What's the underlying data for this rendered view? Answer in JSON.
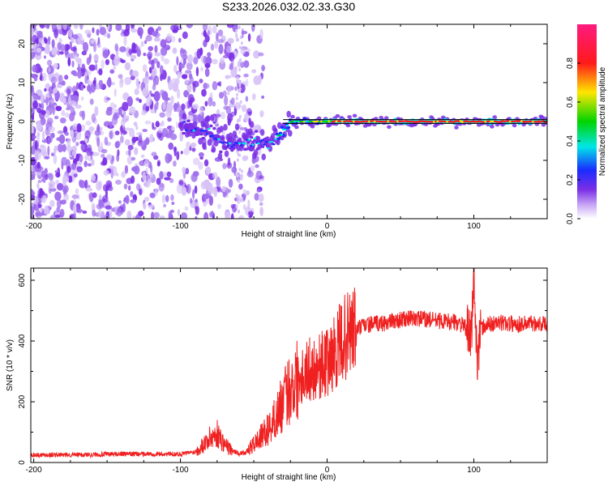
{
  "title": "S233.2026.032.02.33.G30",
  "chart_data": [
    {
      "type": "heatmap",
      "xlabel": "Height of straight line (km)",
      "ylabel": "Frequency (Hz)",
      "xlim": [
        -202,
        150
      ],
      "ylim": [
        -25,
        25
      ],
      "xticks": [
        -200,
        -100,
        0,
        100
      ],
      "yticks": [
        -20,
        -10,
        0,
        10,
        20
      ],
      "colorbar": {
        "label": "Normalized spectral amplitude",
        "range": [
          0,
          1
        ],
        "ticks": [
          "0.0",
          "0.2",
          "0.4",
          "0.6",
          "0.8"
        ]
      },
      "colors": {
        "purple": "#7a2fe6",
        "blue": "#1a2cff",
        "cyan": "#00e6e6",
        "green": "#00d400",
        "yellow": "#ffe600",
        "red": "#ff1a1a",
        "magenta": "#ff1a80"
      },
      "ridge": [
        {
          "x": -100,
          "f": -0.5,
          "amp": 0.25
        },
        {
          "x": -90,
          "f": -2,
          "amp": 0.3
        },
        {
          "x": -80,
          "f": -3,
          "amp": 0.3
        },
        {
          "x": -70,
          "f": -6,
          "amp": 0.35
        },
        {
          "x": -60,
          "f": -6,
          "amp": 0.35
        },
        {
          "x": -50,
          "f": -5,
          "amp": 0.4
        },
        {
          "x": -40,
          "f": -6,
          "amp": 0.4
        },
        {
          "x": -30,
          "f": -3,
          "amp": 0.5
        },
        {
          "x": -25,
          "f": 0,
          "amp": 0.55
        },
        {
          "x": -10,
          "f": 0,
          "amp": 0.65
        },
        {
          "x": 0,
          "f": 0,
          "amp": 0.75
        },
        {
          "x": 20,
          "f": 0,
          "amp": 0.9
        },
        {
          "x": 50,
          "f": 0,
          "amp": 0.9
        },
        {
          "x": 80,
          "f": 0,
          "amp": 0.9
        },
        {
          "x": 100,
          "f": 0,
          "amp": 0.9
        },
        {
          "x": 150,
          "f": 0,
          "amp": 0.85
        }
      ]
    },
    {
      "type": "line",
      "xlabel": "Height of straight line (km)",
      "ylabel": "SNR (10 * v/v)",
      "xlim": [
        -202,
        150
      ],
      "ylim": [
        0,
        640
      ],
      "xticks": [
        -200,
        -100,
        0,
        100
      ],
      "yticks": [
        0,
        200,
        400,
        600
      ],
      "color": "#f02020",
      "series": [
        {
          "name": "SNR",
          "x": [
            -202,
            -180,
            -160,
            -140,
            -120,
            -100,
            -90,
            -80,
            -75,
            -70,
            -65,
            -60,
            -55,
            -50,
            -45,
            -40,
            -35,
            -30,
            -25,
            -20,
            -15,
            -10,
            -5,
            0,
            5,
            10,
            15,
            20,
            25,
            30,
            40,
            50,
            60,
            70,
            80,
            90,
            95,
            98,
            100,
            102,
            105,
            110,
            120,
            130,
            140,
            150
          ],
          "values": [
            25,
            25,
            26,
            28,
            28,
            28,
            35,
            80,
            95,
            60,
            40,
            30,
            35,
            60,
            85,
            110,
            150,
            200,
            250,
            280,
            300,
            310,
            320,
            330,
            360,
            400,
            425,
            440,
            450,
            455,
            460,
            470,
            475,
            470,
            465,
            460,
            440,
            400,
            600,
            350,
            440,
            455,
            460,
            455,
            460,
            455
          ]
        }
      ]
    }
  ]
}
